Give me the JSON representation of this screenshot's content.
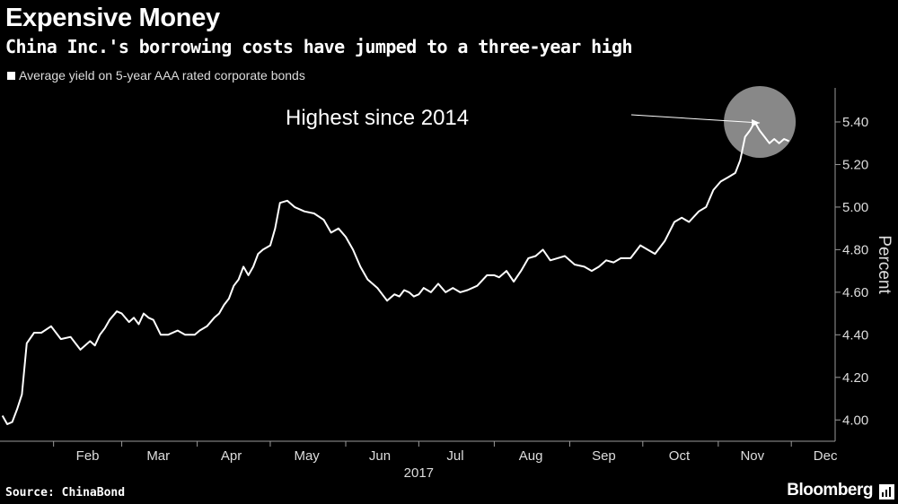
{
  "header": {
    "title": "Expensive Money",
    "subtitle": "China Inc.'s borrowing costs have jumped to a three-year high"
  },
  "legend": {
    "label": "Average yield on 5-year AAA rated corporate bonds"
  },
  "footer": {
    "source": "Source: ChinaBond",
    "brand": "Bloomberg",
    "brand_icon": "bloomberg-terminal-icon"
  },
  "colors": {
    "background": "#000000",
    "line": "#ffffff",
    "highlight": "#bdbdbd"
  },
  "chart_data": {
    "type": "line",
    "title": "Expensive Money",
    "subtitle": "China Inc.'s borrowing costs have jumped to a three-year high",
    "ylabel": "Percent",
    "xlabel": "2017",
    "year_label": "2017",
    "ylim": [
      3.9,
      5.56
    ],
    "y_ticks": [
      "4.00",
      "4.20",
      "4.40",
      "4.60",
      "4.80",
      "5.00",
      "5.20",
      "5.40"
    ],
    "x_ticks": [
      "Feb",
      "Mar",
      "Apr",
      "May",
      "Jun",
      "Jul",
      "Aug",
      "Sep",
      "Oct",
      "Nov",
      "Dec"
    ],
    "grid": false,
    "legend_position": "top-left",
    "annotation": {
      "text": "Highest since 2014",
      "target_date": "2017-11-21",
      "target_value": 5.4
    },
    "series": [
      {
        "name": "Average yield on 5-year AAA rated corporate bonds",
        "x": [
          "2017-01-11",
          "2017-01-13",
          "2017-01-15",
          "2017-01-17",
          "2017-01-19",
          "2017-01-21",
          "2017-01-24",
          "2017-01-27",
          "2017-01-31",
          "2017-02-04",
          "2017-02-08",
          "2017-02-12",
          "2017-02-16",
          "2017-02-18",
          "2017-02-20",
          "2017-02-22",
          "2017-02-24",
          "2017-02-27",
          "2017-03-01",
          "2017-03-04",
          "2017-03-06",
          "2017-03-08",
          "2017-03-10",
          "2017-03-12",
          "2017-03-14",
          "2017-03-17",
          "2017-03-20",
          "2017-03-24",
          "2017-03-27",
          "2017-03-31",
          "2017-04-02",
          "2017-04-05",
          "2017-04-08",
          "2017-04-10",
          "2017-04-12",
          "2017-04-14",
          "2017-04-16",
          "2017-04-18",
          "2017-04-20",
          "2017-04-22",
          "2017-04-24",
          "2017-04-26",
          "2017-04-28",
          "2017-05-01",
          "2017-05-03",
          "2017-05-05",
          "2017-05-08",
          "2017-05-11",
          "2017-05-15",
          "2017-05-19",
          "2017-05-23",
          "2017-05-26",
          "2017-05-29",
          "2017-06-01",
          "2017-06-04",
          "2017-06-07",
          "2017-06-10",
          "2017-06-14",
          "2017-06-18",
          "2017-06-21",
          "2017-06-23",
          "2017-06-25",
          "2017-06-27",
          "2017-06-29",
          "2017-07-01",
          "2017-07-03",
          "2017-07-06",
          "2017-07-09",
          "2017-07-12",
          "2017-07-15",
          "2017-07-18",
          "2017-07-21",
          "2017-07-25",
          "2017-07-29",
          "2017-08-01",
          "2017-08-03",
          "2017-08-06",
          "2017-08-09",
          "2017-08-12",
          "2017-08-15",
          "2017-08-18",
          "2017-08-21",
          "2017-08-24",
          "2017-08-27",
          "2017-08-30",
          "2017-09-03",
          "2017-09-07",
          "2017-09-10",
          "2017-09-13",
          "2017-09-16",
          "2017-09-19",
          "2017-09-22",
          "2017-09-26",
          "2017-09-30",
          "2017-10-03",
          "2017-10-06",
          "2017-10-10",
          "2017-10-14",
          "2017-10-17",
          "2017-10-20",
          "2017-10-24",
          "2017-10-27",
          "2017-10-30",
          "2017-11-02",
          "2017-11-05",
          "2017-11-08",
          "2017-11-10",
          "2017-11-12",
          "2017-11-14",
          "2017-11-16",
          "2017-11-18",
          "2017-11-20",
          "2017-11-22",
          "2017-11-24",
          "2017-11-26",
          "2017-11-28",
          "2017-11-30"
        ],
        "values": [
          4.02,
          3.98,
          3.99,
          4.05,
          4.12,
          4.36,
          4.41,
          4.41,
          4.44,
          4.38,
          4.39,
          4.33,
          4.37,
          4.35,
          4.4,
          4.43,
          4.47,
          4.51,
          4.5,
          4.46,
          4.48,
          4.45,
          4.5,
          4.48,
          4.47,
          4.4,
          4.4,
          4.42,
          4.4,
          4.4,
          4.42,
          4.44,
          4.48,
          4.5,
          4.54,
          4.57,
          4.63,
          4.66,
          4.72,
          4.68,
          4.72,
          4.78,
          4.8,
          4.82,
          4.9,
          5.02,
          5.03,
          5.0,
          4.98,
          4.97,
          4.94,
          4.88,
          4.9,
          4.86,
          4.8,
          4.72,
          4.66,
          4.62,
          4.56,
          4.59,
          4.58,
          4.61,
          4.6,
          4.58,
          4.59,
          4.62,
          4.6,
          4.64,
          4.6,
          4.62,
          4.6,
          4.61,
          4.63,
          4.68,
          4.68,
          4.67,
          4.7,
          4.65,
          4.7,
          4.76,
          4.77,
          4.8,
          4.75,
          4.76,
          4.77,
          4.73,
          4.72,
          4.7,
          4.72,
          4.75,
          4.74,
          4.76,
          4.76,
          4.82,
          4.8,
          4.78,
          4.84,
          4.93,
          4.95,
          4.93,
          4.98,
          5.0,
          5.08,
          5.12,
          5.14,
          5.16,
          5.22,
          5.33,
          5.36,
          5.4,
          5.36,
          5.33,
          5.3,
          5.32,
          5.3,
          5.32,
          5.31
        ]
      }
    ]
  }
}
